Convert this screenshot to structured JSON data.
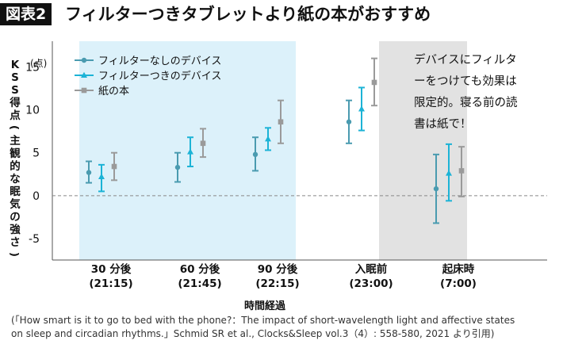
{
  "header": {
    "badge": "図表2",
    "title": "フィルターつきタブレットより紙の本がおすすめ"
  },
  "chart_data": {
    "type": "scatter",
    "categories": [
      "30 分後\n(21:15)",
      "60 分後\n(21:45)",
      "90 分後\n(22:15)",
      "入眠前\n(23:00)",
      "起床時\n(7:00)"
    ],
    "category_lines": [
      [
        "30 分後",
        "(21:15)"
      ],
      [
        "60 分後",
        "(21:45)"
      ],
      [
        "90 分後",
        "(22:15)"
      ],
      [
        "入眠前",
        "(23:00)"
      ],
      [
        "起床時",
        "(7:00)"
      ]
    ],
    "series": [
      {
        "name": "フィルターなしのデバイス",
        "color": "#4a9bb0",
        "marker": "circle",
        "values": [
          2.7,
          3.3,
          4.8,
          8.6,
          0.8
        ],
        "lower": [
          1.5,
          1.6,
          2.9,
          6.1,
          -3.2
        ],
        "upper": [
          4.0,
          5.0,
          6.8,
          11.1,
          4.8
        ]
      },
      {
        "name": "フィルターつきのデバイス",
        "color": "#1cb3d6",
        "marker": "triangle",
        "values": [
          2.2,
          5.1,
          6.6,
          10.1,
          2.6
        ],
        "lower": [
          0.5,
          3.4,
          5.3,
          7.6,
          -0.6
        ],
        "upper": [
          3.6,
          6.8,
          7.9,
          12.6,
          6.0
        ]
      },
      {
        "name": "紙の本",
        "color": "#9a9a9a",
        "marker": "square",
        "values": [
          3.4,
          6.1,
          8.6,
          13.2,
          2.9
        ],
        "lower": [
          1.8,
          4.5,
          6.1,
          10.5,
          -0.1
        ],
        "upper": [
          5.0,
          7.8,
          11.1,
          16.0,
          5.7
        ]
      }
    ],
    "ylabel": "KSS得点(主観的な眠気の強さ)",
    "yunit": "(点)",
    "xlabel": "時間経過",
    "yticks": [
      -5,
      0,
      5,
      10,
      15
    ],
    "ylim": [
      -7.5,
      18
    ],
    "reference_line": 0,
    "blue_shade_label": "",
    "annotation": [
      "デバイスにフィルタ",
      "ーをつけても効果は",
      "限定的。寝る前の読",
      "書は紙で！"
    ],
    "colors": {
      "blue_band": "#dcf1fa",
      "gray_band": "#e2e2e2"
    }
  },
  "source": {
    "line1": "(「How smart is it to go to bed with the phone?：The impact of short-wavelength light and affective states",
    "line2": "on sleep and circadian rhythms.」Schmid SR et al.,  Clocks&Sleep vol.3（4）: 558-580,  2021 より引用)"
  }
}
